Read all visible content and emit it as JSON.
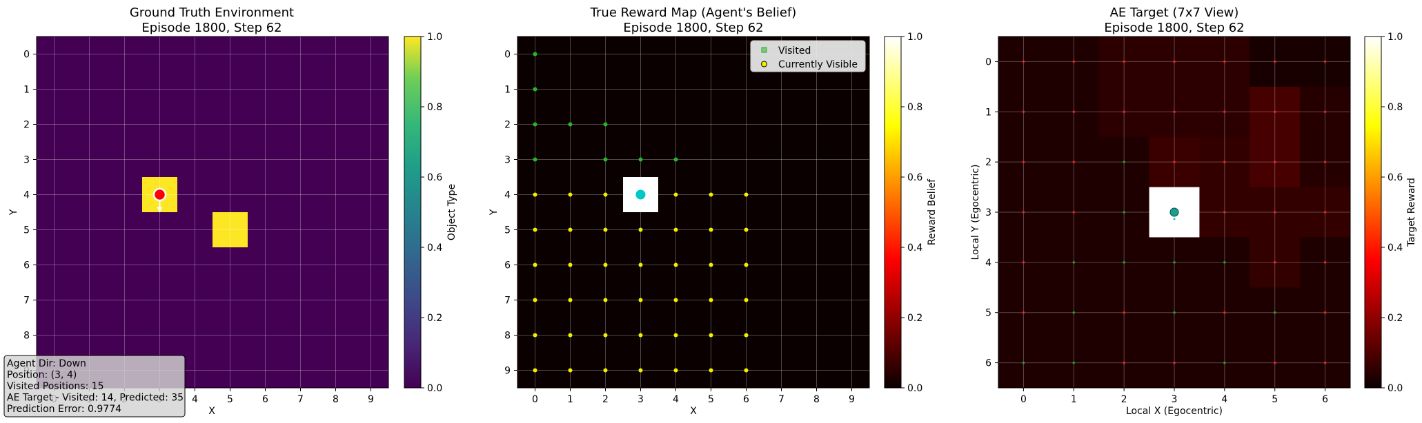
{
  "chart_data": [
    {
      "type": "heatmap",
      "title": "Ground Truth Environment",
      "subtitle": "Episode 1800, Step 62",
      "xlabel": "X",
      "ylabel": "Y",
      "xticks": [
        "0",
        "1",
        "2",
        "3",
        "4",
        "5",
        "6",
        "7",
        "8",
        "9"
      ],
      "yticks": [
        "0",
        "1",
        "2",
        "3",
        "4",
        "5",
        "6",
        "7",
        "8",
        "9"
      ],
      "xlim": [
        -0.5,
        9.5
      ],
      "ylim": [
        9.5,
        -0.5
      ],
      "grid": true,
      "colormap": "viridis",
      "background_value": 0.0,
      "cells": [
        {
          "x": 3,
          "y": 4,
          "value": 1.0
        },
        {
          "x": 5,
          "y": 5,
          "value": 1.0
        }
      ],
      "agent": {
        "x": 3,
        "y": 4,
        "direction": "Down",
        "marker_color": "#ff0000"
      },
      "colorbar": {
        "label": "Object Type",
        "range": [
          0.0,
          1.0
        ],
        "ticks": [
          "0.0",
          "0.2",
          "0.4",
          "0.6",
          "0.8",
          "1.0"
        ]
      },
      "annotation": {
        "lines": [
          "Agent Dir: Down",
          "Position: (3, 4)",
          "Visited Positions: 15",
          "AE Target - Visited: 14, Predicted: 35",
          "Prediction Error: 0.9774"
        ]
      }
    },
    {
      "type": "heatmap",
      "title": "True Reward Map (Agent's Belief)",
      "subtitle": "Episode 1800, Step 62",
      "xlabel": "X",
      "ylabel": "Y",
      "xticks": [
        "0",
        "1",
        "2",
        "3",
        "4",
        "5",
        "6",
        "7",
        "8",
        "9"
      ],
      "yticks": [
        "0",
        "1",
        "2",
        "3",
        "4",
        "5",
        "6",
        "7",
        "8",
        "9"
      ],
      "xlim": [
        -0.5,
        9.5
      ],
      "ylim": [
        9.5,
        -0.5
      ],
      "grid": true,
      "colormap": "hot",
      "background_value": 0.0,
      "cells": [
        {
          "x": 3,
          "y": 4,
          "value": 1.0
        }
      ],
      "agent": {
        "x": 3,
        "y": 4,
        "marker_color": "#00c8c8"
      },
      "series": [
        {
          "name": "Visited",
          "marker": "square",
          "color": "#22bb22",
          "points": [
            [
              0,
              0
            ],
            [
              0,
              1
            ],
            [
              0,
              2
            ],
            [
              1,
              2
            ],
            [
              2,
              2
            ],
            [
              0,
              3
            ],
            [
              2,
              3
            ],
            [
              3,
              3
            ],
            [
              4,
              3
            ]
          ]
        },
        {
          "name": "Currently Visible",
          "marker": "circle",
          "color": "#f0f000",
          "points": [
            [
              0,
              4
            ],
            [
              1,
              4
            ],
            [
              2,
              4
            ],
            [
              4,
              4
            ],
            [
              5,
              4
            ],
            [
              6,
              4
            ],
            [
              0,
              5
            ],
            [
              1,
              5
            ],
            [
              2,
              5
            ],
            [
              3,
              5
            ],
            [
              4,
              5
            ],
            [
              5,
              5
            ],
            [
              6,
              5
            ],
            [
              0,
              6
            ],
            [
              1,
              6
            ],
            [
              2,
              6
            ],
            [
              3,
              6
            ],
            [
              4,
              6
            ],
            [
              5,
              6
            ],
            [
              6,
              6
            ],
            [
              0,
              7
            ],
            [
              1,
              7
            ],
            [
              2,
              7
            ],
            [
              3,
              7
            ],
            [
              4,
              7
            ],
            [
              5,
              7
            ],
            [
              6,
              7
            ],
            [
              0,
              8
            ],
            [
              1,
              8
            ],
            [
              2,
              8
            ],
            [
              3,
              8
            ],
            [
              4,
              8
            ],
            [
              5,
              8
            ],
            [
              6,
              8
            ],
            [
              0,
              9
            ],
            [
              1,
              9
            ],
            [
              2,
              9
            ],
            [
              3,
              9
            ],
            [
              4,
              9
            ],
            [
              5,
              9
            ],
            [
              6,
              9
            ]
          ]
        }
      ],
      "legend": {
        "position": "top-right",
        "entries": [
          "Visited",
          "Currently Visible"
        ]
      },
      "colorbar": {
        "label": "Reward Belief",
        "range": [
          0.0,
          1.0
        ],
        "ticks": [
          "0.0",
          "0.2",
          "0.4",
          "0.6",
          "0.8",
          "1.0"
        ]
      }
    },
    {
      "type": "heatmap",
      "title": "AE Target (7x7 View)",
      "subtitle": "Episode 1800, Step 62",
      "xlabel": "Local X (Egocentric)",
      "ylabel": "Local Y (Egocentric)",
      "xticks": [
        "0",
        "1",
        "2",
        "3",
        "4",
        "5",
        "6"
      ],
      "yticks": [
        "0",
        "1",
        "2",
        "3",
        "4",
        "5",
        "6"
      ],
      "xlim": [
        -0.5,
        6.5
      ],
      "ylim": [
        6.5,
        -0.5
      ],
      "grid": true,
      "colormap": "hot",
      "matrix": [
        [
          0.03,
          0.03,
          0.05,
          0.05,
          0.05,
          0.02,
          0.02
        ],
        [
          0.03,
          0.03,
          0.05,
          0.05,
          0.05,
          0.09,
          0.04
        ],
        [
          0.03,
          0.03,
          0.03,
          0.07,
          0.06,
          0.09,
          0.04
        ],
        [
          0.03,
          0.03,
          0.03,
          1.0,
          0.06,
          0.06,
          0.06
        ],
        [
          0.03,
          0.03,
          0.03,
          0.03,
          0.03,
          0.06,
          0.03
        ],
        [
          0.03,
          0.03,
          0.03,
          0.03,
          0.03,
          0.03,
          0.03
        ],
        [
          0.03,
          0.03,
          0.03,
          0.03,
          0.03,
          0.03,
          0.03
        ]
      ],
      "dot_colors": [
        [
          "r",
          "r",
          "r",
          "r",
          "r",
          "r",
          "r"
        ],
        [
          "r",
          "r",
          "r",
          "r",
          "r",
          "r",
          "r"
        ],
        [
          "r",
          "r",
          "g",
          "r",
          "r",
          "r",
          "r"
        ],
        [
          "r",
          "r",
          "g",
          "c",
          "r",
          "r",
          "r"
        ],
        [
          "r",
          "g",
          "g",
          "g",
          "g",
          "r",
          "r"
        ],
        [
          "r",
          "g",
          "r",
          "g",
          "r",
          "g",
          "r"
        ],
        [
          "g",
          "g",
          "r",
          "r",
          "g",
          "r",
          "r"
        ]
      ],
      "agent": {
        "x": 3,
        "y": 3,
        "marker_color": "#1a9e8f"
      },
      "colorbar": {
        "label": "Target Reward",
        "range": [
          0.0,
          1.0
        ],
        "ticks": [
          "0.0",
          "0.2",
          "0.4",
          "0.6",
          "0.8",
          "1.0"
        ]
      }
    }
  ]
}
